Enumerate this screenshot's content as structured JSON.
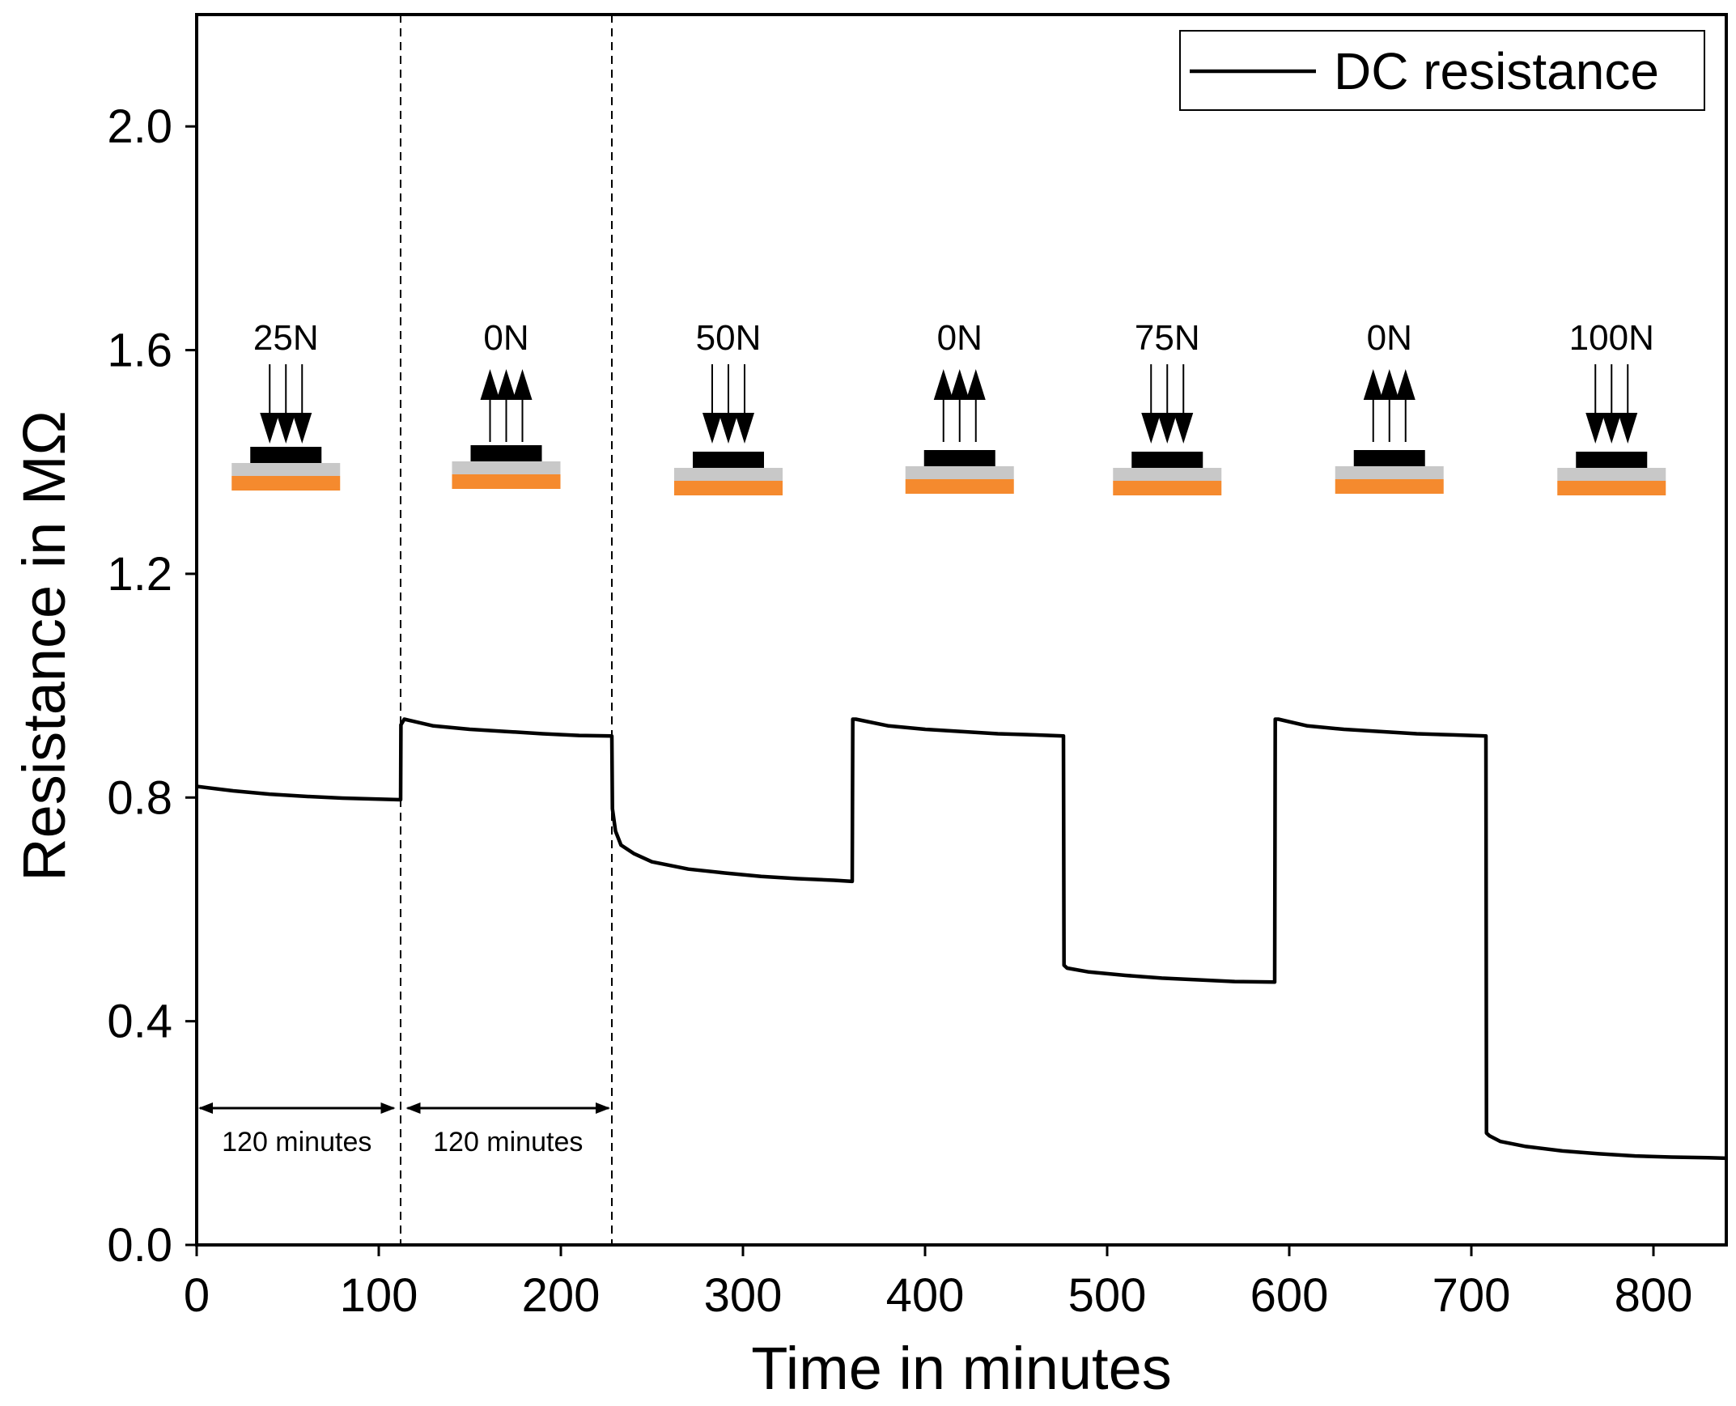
{
  "chart_data": {
    "type": "line",
    "title": "",
    "xlabel": "Time in minutes",
    "ylabel": "Resistance in MΩ",
    "xlim": [
      0,
      840
    ],
    "ylim": [
      0,
      2.2
    ],
    "xticks": [
      0,
      100,
      200,
      300,
      400,
      500,
      600,
      700,
      800
    ],
    "xtick_labels": [
      "0",
      "100",
      "200",
      "300",
      "400",
      "500",
      "600",
      "700",
      "800"
    ],
    "yticks": [
      0,
      0.4,
      0.8,
      1.2,
      1.6,
      2.0
    ],
    "ytick_labels": [
      "0.0",
      "0.4",
      "0.8",
      "1.2",
      "1.6",
      "2.0"
    ],
    "grid": false,
    "legend": {
      "position": "top-right",
      "entries": [
        "DC resistance"
      ]
    },
    "series": [
      {
        "name": "DC resistance",
        "color": "#000000",
        "x": [
          0,
          20,
          40,
          60,
          80,
          100,
          112,
          112.2,
          114,
          130,
          150,
          170,
          190,
          210,
          228,
          228.3,
          230,
          233,
          240,
          250,
          270,
          290,
          310,
          330,
          350,
          360,
          360.3,
          362,
          380,
          400,
          420,
          440,
          460,
          476,
          476.3,
          478,
          490,
          510,
          530,
          550,
          570,
          592,
          592.3,
          594,
          610,
          630,
          650,
          670,
          690,
          708,
          708.3,
          710,
          716,
          730,
          750,
          770,
          790,
          810,
          830,
          840
        ],
        "y": [
          0.82,
          0.812,
          0.806,
          0.802,
          0.799,
          0.797,
          0.796,
          0.93,
          0.94,
          0.928,
          0.922,
          0.918,
          0.914,
          0.911,
          0.91,
          0.78,
          0.74,
          0.715,
          0.7,
          0.685,
          0.672,
          0.665,
          0.659,
          0.655,
          0.652,
          0.65,
          0.94,
          0.94,
          0.928,
          0.922,
          0.918,
          0.914,
          0.912,
          0.91,
          0.5,
          0.495,
          0.488,
          0.482,
          0.477,
          0.474,
          0.471,
          0.47,
          0.94,
          0.94,
          0.928,
          0.922,
          0.918,
          0.914,
          0.912,
          0.91,
          0.2,
          0.195,
          0.185,
          0.176,
          0.168,
          0.163,
          0.159,
          0.157,
          0.156,
          0.155
        ]
      }
    ],
    "vlines": [
      112,
      228
    ],
    "spans": [
      {
        "from": 0,
        "to": 110,
        "label": "120 minutes"
      },
      {
        "from": 114,
        "to": 228,
        "label": "120 minutes"
      }
    ],
    "annotations": [
      {
        "label": "25N",
        "center_x": 49,
        "direction": "down"
      },
      {
        "label": "0N",
        "center_x": 170,
        "direction": "up"
      },
      {
        "label": "50N",
        "center_x": 292,
        "direction": "down"
      },
      {
        "label": "0N",
        "center_x": 419,
        "direction": "up"
      },
      {
        "label": "75N",
        "center_x": 533,
        "direction": "down"
      },
      {
        "label": "0N",
        "center_x": 655,
        "direction": "up"
      },
      {
        "label": "100N",
        "center_x": 777,
        "direction": "down"
      }
    ],
    "colors": {
      "line": "#000000",
      "substrate_top": "#c8c8c8",
      "substrate_bottom": "#f58a2e",
      "probe": "#000000"
    }
  }
}
